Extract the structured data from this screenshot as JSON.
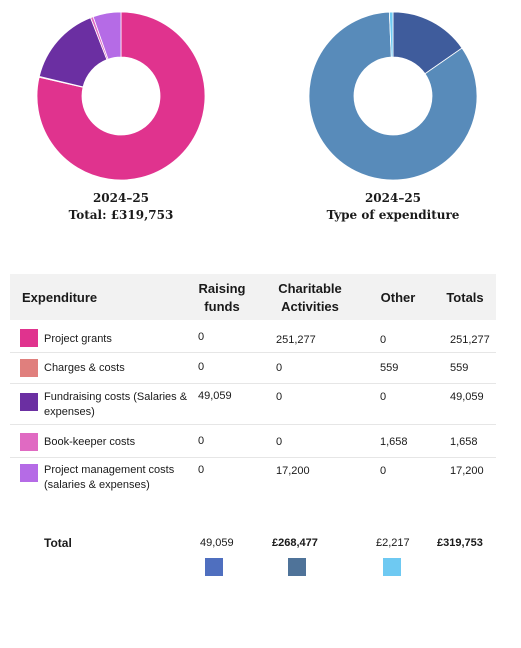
{
  "chart_data": [
    {
      "type": "pie",
      "title": "2024–25",
      "subtitle": "Total: £319,753",
      "labels": [
        "Project grants",
        "Charges & costs",
        "Fundraising costs (Salaries & expenses)",
        "Book-keeper costs",
        "Project management costs (salaries & expenses)"
      ],
      "values": [
        251277,
        559,
        49059,
        1658,
        17200
      ],
      "colors": [
        "#e0338e",
        "#e07f7d",
        "#6b2fa2",
        "#e06ac2",
        "#b56be6"
      ]
    },
    {
      "type": "pie",
      "title": "2024–25",
      "subtitle": "Type of expenditure",
      "labels": [
        "Raising funds",
        "Charitable Activities",
        "Other"
      ],
      "values": [
        49059,
        268477,
        2217
      ],
      "colors": [
        "#3f5c9c",
        "#588bba",
        "#6ec9f2"
      ]
    }
  ],
  "table": {
    "headers": {
      "expenditure": "Expenditure",
      "raising_funds": "Raising funds",
      "charitable": "Charitable Activities",
      "other": "Other",
      "totals": "Totals"
    },
    "rows": [
      {
        "label": "Project grants",
        "color": "#e0338e",
        "raising": "0",
        "charitable": "251,277",
        "other": "0",
        "total": "251,277"
      },
      {
        "label": "Charges & costs",
        "color": "#e07f7d",
        "raising": "0",
        "charitable": "0",
        "other": "559",
        "total": "559"
      },
      {
        "label": "Fundraising costs (Salaries & expenses)",
        "color": "#6b2fa2",
        "raising": "49,059",
        "charitable": "0",
        "other": "0",
        "total": "49,059"
      },
      {
        "label": "Book-keeper costs",
        "color": "#e06ac2",
        "raising": "0",
        "charitable": "0",
        "other": "1,658",
        "total": "1,658"
      },
      {
        "label": "Project management costs (salaries & expenses)",
        "color": "#b56be6",
        "raising": "0",
        "charitable": "17,200",
        "other": "0",
        "total": "17,200"
      }
    ],
    "total": {
      "label": "Total",
      "raising": "49,059",
      "charitable": "£268,477",
      "other": "£2,217",
      "total": "£319,753",
      "swatch_colors": [
        "#4f6fbf",
        "#4f7399",
        "#6ec9f2"
      ]
    }
  }
}
